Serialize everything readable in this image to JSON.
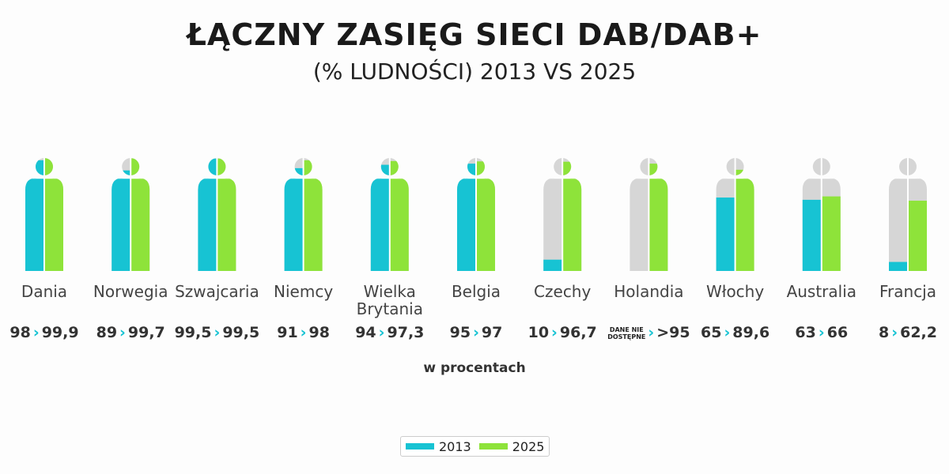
{
  "header": {
    "title": "ŁĄCZNY ZASIĘG SIECI DAB/DAB+",
    "subtitle": "(% LUDNOŚCI) 2013 VS 2025"
  },
  "unit_label": "w procentach",
  "colors": {
    "y2013": "#17c3d3",
    "y2025": "#8ee33a",
    "base": "#d6d6d6"
  },
  "legend": [
    {
      "label": "2013",
      "color": "#17c3d3"
    },
    {
      "label": "2025",
      "color": "#8ee33a"
    }
  ],
  "chart_data": {
    "type": "bar",
    "title": "ŁĄCZNY ZASIĘG SIECI DAB/DAB+",
    "subtitle": "(% LUDNOŚCI) 2013 VS 2025",
    "ylim": [
      0,
      100
    ],
    "series": [
      {
        "name": "2013",
        "values": [
          98,
          89,
          99.5,
          91,
          94,
          95,
          10,
          null,
          65,
          63,
          8
        ]
      },
      {
        "name": "2025",
        "values": [
          99.9,
          99.7,
          99.5,
          98,
          97.3,
          97,
          96.7,
          95,
          89.6,
          66,
          62.2
        ]
      }
    ],
    "categories": [
      "Dania",
      "Norwegia",
      "Szwajcaria",
      "Niemcy",
      "Wielka Brytania",
      "Belgia",
      "Czechy",
      "Holandia",
      "Włochy",
      "Australia",
      "Francja"
    ],
    "labels": [
      {
        "v2013": "98",
        "v2025": "99,9"
      },
      {
        "v2013": "89",
        "v2025": "99,7"
      },
      {
        "v2013": "99,5",
        "v2025": "99,5"
      },
      {
        "v2013": "91",
        "v2025": "98"
      },
      {
        "v2013": "94",
        "v2025": "97,3"
      },
      {
        "v2013": "95",
        "v2025": "97"
      },
      {
        "v2013": "10",
        "v2025": "96,7"
      },
      {
        "v2013": "DANE NIE DOSTĘPNE",
        "v2025": ">95"
      },
      {
        "v2013": "65",
        "v2025": "89,6"
      },
      {
        "v2013": "63",
        "v2025": "66"
      },
      {
        "v2013": "8",
        "v2025": "62,2"
      }
    ],
    "arrow": "›"
  }
}
